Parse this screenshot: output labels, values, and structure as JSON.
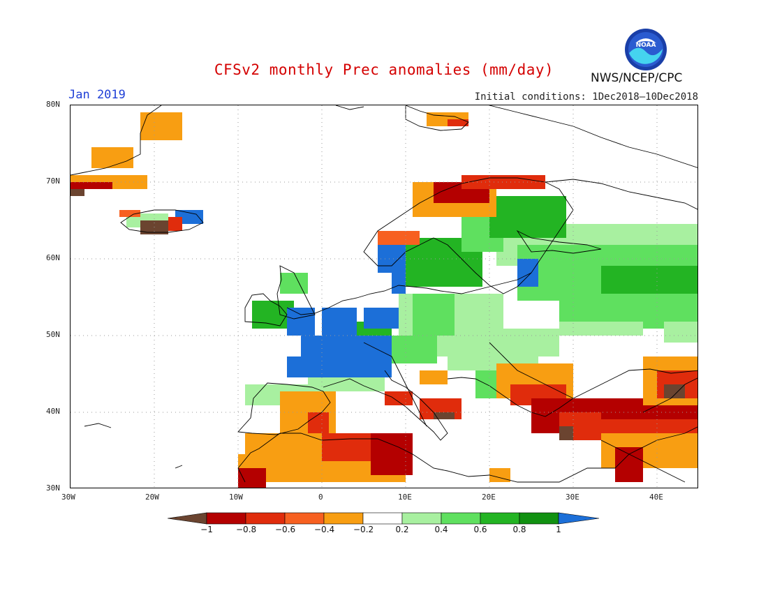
{
  "header": {
    "title": "CFSv2 monthly Prec anomalies (mm/day)",
    "valid_month": "Jan 2019",
    "initial_conditions": "Initial conditions: 1Dec2018–10Dec2018",
    "agency": "NWS/NCEP/CPC",
    "logo_text": "NOAA"
  },
  "map_axes": {
    "lat_labels": [
      "80N",
      "70N",
      "60N",
      "50N",
      "40N",
      "30N"
    ],
    "lon_labels": [
      "30W",
      "20W",
      "10W",
      "0",
      "10E",
      "20E",
      "30E",
      "40E"
    ]
  },
  "colorbar": {
    "colors": [
      "#6b4430",
      "#b40000",
      "#e02c0c",
      "#f76020",
      "#f89e12",
      "#ffffff",
      "#a8f0a0",
      "#5fe05f",
      "#23b423",
      "#119111",
      "#1c6fd8"
    ],
    "labels": [
      "−1",
      "−0.8",
      "−0.6",
      "−0.4",
      "−0.2",
      "0.2",
      "0.4",
      "0.6",
      "0.8",
      "1"
    ]
  }
}
